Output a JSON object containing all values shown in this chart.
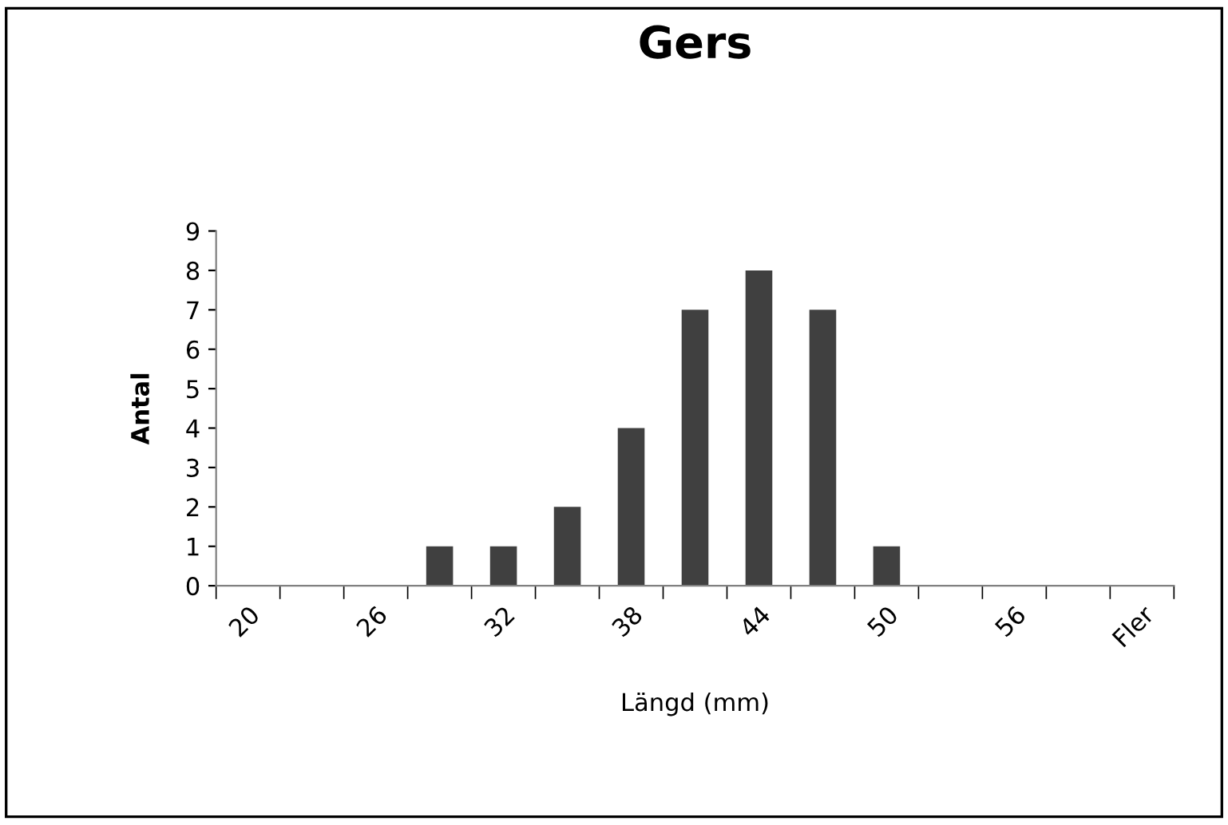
{
  "chart_data": {
    "type": "bar",
    "title": "Gers",
    "xlabel": "Längd (mm)",
    "ylabel": "Antal",
    "categories": [
      "20",
      null,
      "26",
      null,
      "32",
      null,
      "38",
      null,
      "44",
      null,
      "50",
      null,
      "56",
      null,
      "Fler"
    ],
    "values": [
      0,
      0,
      0,
      1,
      1,
      2,
      4,
      7,
      8,
      7,
      1,
      0,
      0,
      0,
      0
    ],
    "color": "#404040",
    "ylim": [
      0,
      9
    ],
    "yticks": [
      0,
      1,
      2,
      3,
      4,
      5,
      6,
      7,
      8,
      9
    ],
    "grid": false,
    "legend": false
  }
}
